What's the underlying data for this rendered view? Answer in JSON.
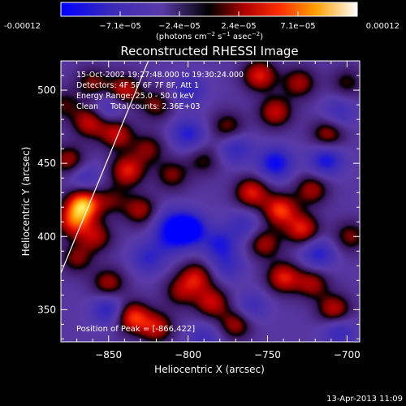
{
  "chart_data": {
    "type": "heatmap",
    "title": "Reconstructed RHESSI Image",
    "xlabel": "Heliocentric X (arcsec)",
    "ylabel": "Heliocentric Y (arcsec)",
    "xlim": [
      -880,
      -692
    ],
    "ylim": [
      328,
      520
    ],
    "x_ticks": [
      -850,
      -800,
      -750,
      -700
    ],
    "y_ticks": [
      350,
      400,
      450,
      500
    ],
    "x_tick_labels": [
      "−850",
      "−800",
      "−750",
      "−700"
    ],
    "y_tick_labels": [
      "350",
      "400",
      "450",
      "500"
    ],
    "colorbar": {
      "range": [
        -0.00012,
        0.00012
      ],
      "tick_labels": [
        "-0.00012",
        "−7.1e−05",
        "−2.4e−05",
        "2.4e−05",
        "7.1e−05",
        "0.00012"
      ],
      "units_prefix": "(photons cm",
      "units_sup1": "−2",
      "units_mid": " s",
      "units_sup2": "−1",
      "units_mid2": " asec",
      "units_sup3": "−2",
      "units_suffix": ")"
    },
    "annotations": [
      "15-Oct-2002 19:27:48.000 to 19:30:24.000",
      "Detectors: 4F 5F 6F 7F 8F, Att 1",
      "Energy Range: 25.0 - 50.0 keV",
      "Clean     Total counts: 2.36E+03"
    ],
    "peak_label": "Position of Peak = [-866,422]",
    "peak": [
      -866,
      422
    ],
    "limb_line": [
      [
        -880,
        375
      ],
      [
        -825,
        520
      ]
    ],
    "sources": [
      {
        "x": -866,
        "y": 422,
        "v": 0.00012
      },
      {
        "x": -872,
        "y": 410,
        "v": 8e-05
      },
      {
        "x": -858,
        "y": 400,
        "v": 6e-05
      },
      {
        "x": -870,
        "y": 385,
        "v": 5e-05
      },
      {
        "x": -875,
        "y": 452,
        "v": 6e-05
      },
      {
        "x": -862,
        "y": 478,
        "v": 7e-05
      },
      {
        "x": -845,
        "y": 470,
        "v": 7e-05
      },
      {
        "x": -838,
        "y": 445,
        "v": 8e-05
      },
      {
        "x": -830,
        "y": 418,
        "v": 6e-05
      },
      {
        "x": -848,
        "y": 425,
        "v": 4e-05
      },
      {
        "x": -840,
        "y": 500,
        "v": 7e-05
      },
      {
        "x": -820,
        "y": 490,
        "v": 5e-05
      },
      {
        "x": -825,
        "y": 460,
        "v": 5e-05
      },
      {
        "x": -810,
        "y": 442,
        "v": 5e-05
      },
      {
        "x": -835,
        "y": 345,
        "v": 9e-05
      },
      {
        "x": -820,
        "y": 338,
        "v": 7e-05
      },
      {
        "x": -850,
        "y": 368,
        "v": 6e-05
      },
      {
        "x": -805,
        "y": 362,
        "v": 5e-05
      },
      {
        "x": -795,
        "y": 372,
        "v": 7e-05
      },
      {
        "x": -785,
        "y": 355,
        "v": 7e-05
      },
      {
        "x": -770,
        "y": 340,
        "v": 6e-05
      },
      {
        "x": -775,
        "y": 475,
        "v": 5e-05
      },
      {
        "x": -790,
        "y": 452,
        "v": 4e-05
      },
      {
        "x": -755,
        "y": 510,
        "v": 8e-05
      },
      {
        "x": -745,
        "y": 485,
        "v": 7e-05
      },
      {
        "x": -730,
        "y": 505,
        "v": 6e-05
      },
      {
        "x": -760,
        "y": 430,
        "v": 8e-05
      },
      {
        "x": -742,
        "y": 418,
        "v": 9e-05
      },
      {
        "x": -722,
        "y": 432,
        "v": 6e-05
      },
      {
        "x": -728,
        "y": 405,
        "v": 8e-05
      },
      {
        "x": -752,
        "y": 395,
        "v": 6e-05
      },
      {
        "x": -740,
        "y": 372,
        "v": 8e-05
      },
      {
        "x": -722,
        "y": 368,
        "v": 6e-05
      },
      {
        "x": -708,
        "y": 350,
        "v": 7e-05
      },
      {
        "x": -698,
        "y": 400,
        "v": 5e-05
      },
      {
        "x": -712,
        "y": 470,
        "v": 6e-05
      },
      {
        "x": -700,
        "y": 505,
        "v": 4e-05
      },
      {
        "x": -860,
        "y": 505,
        "v": 5e-05
      },
      {
        "x": -878,
        "y": 490,
        "v": 4e-05
      },
      {
        "x": -800,
        "y": 405,
        "v": -0.00012
      },
      {
        "x": -812,
        "y": 398,
        "v": -5e-05
      },
      {
        "x": -812,
        "y": 410,
        "v": -4e-05
      },
      {
        "x": -780,
        "y": 395,
        "v": -6e-05
      },
      {
        "x": -850,
        "y": 350,
        "v": -6e-05
      },
      {
        "x": -800,
        "y": 470,
        "v": -6e-05
      },
      {
        "x": -800,
        "y": 500,
        "v": -5e-05
      },
      {
        "x": -770,
        "y": 460,
        "v": -5e-05
      },
      {
        "x": -765,
        "y": 408,
        "v": -4e-05
      },
      {
        "x": -745,
        "y": 450,
        "v": -8e-05
      },
      {
        "x": -713,
        "y": 452,
        "v": -7e-05
      },
      {
        "x": -718,
        "y": 388,
        "v": -6e-05
      },
      {
        "x": -775,
        "y": 380,
        "v": -4e-05
      },
      {
        "x": -865,
        "y": 440,
        "v": -4e-05
      },
      {
        "x": -850,
        "y": 488,
        "v": -4e-05
      },
      {
        "x": -705,
        "y": 335,
        "v": -5e-05
      },
      {
        "x": -760,
        "y": 352,
        "v": -4e-05
      },
      {
        "x": -790,
        "y": 330,
        "v": -4e-05
      },
      {
        "x": -705,
        "y": 485,
        "v": -4e-05
      },
      {
        "x": -825,
        "y": 385,
        "v": -5e-05
      }
    ]
  },
  "footer": {
    "timestamp": "13-Apr-2013 11:09"
  }
}
